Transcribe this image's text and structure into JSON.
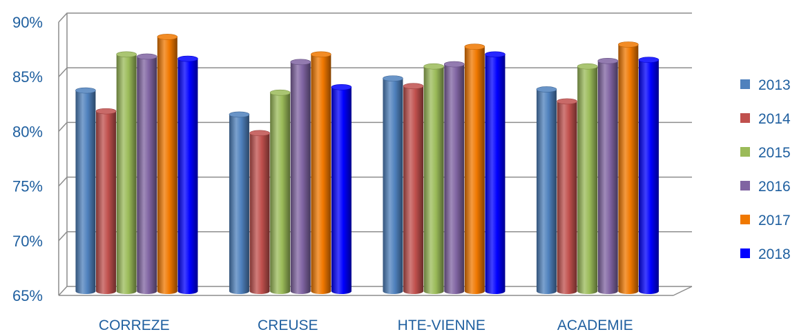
{
  "chart_data": {
    "type": "bar",
    "title": "",
    "xlabel": "",
    "ylabel": "",
    "ylim": [
      65,
      90
    ],
    "y_ticks": [
      "65%",
      "70%",
      "75%",
      "80%",
      "85%",
      "90%"
    ],
    "y_tick_values": [
      65,
      70,
      75,
      80,
      85,
      90
    ],
    "categories": [
      "CORREZE",
      "CREUSE",
      "HTE-VIENNE",
      "ACADEMIE"
    ],
    "series": [
      {
        "name": "2013",
        "color": "#4f81bd",
        "values": [
          84.0,
          81.8,
          85.1,
          84.1
        ]
      },
      {
        "name": "2014",
        "color": "#c0504d",
        "values": [
          82.1,
          80.1,
          84.4,
          83.0
        ]
      },
      {
        "name": "2015",
        "color": "#9bbb59",
        "values": [
          87.3,
          83.8,
          86.2,
          86.2
        ]
      },
      {
        "name": "2016",
        "color": "#8064a2",
        "values": [
          87.1,
          86.6,
          86.4,
          86.7
        ]
      },
      {
        "name": "2017",
        "color": "#f07800",
        "values": [
          88.9,
          87.3,
          88.0,
          88.2
        ]
      },
      {
        "name": "2018",
        "color": "#0000ff",
        "values": [
          86.9,
          84.3,
          87.3,
          86.8
        ]
      }
    ],
    "grid": true,
    "legend_position": "right",
    "style": "3d-cylinder"
  }
}
